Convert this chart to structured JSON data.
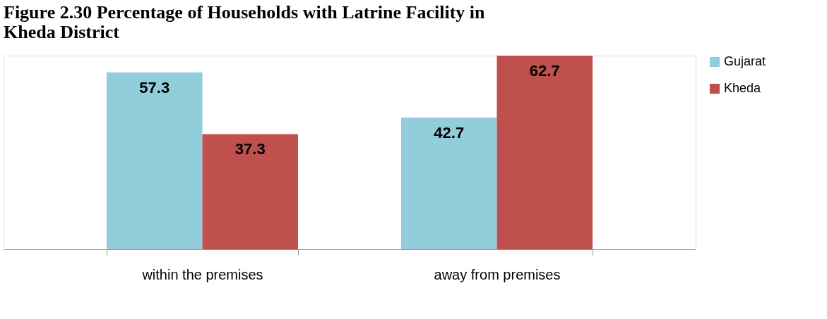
{
  "chart_data": {
    "type": "bar",
    "title": "Figure 2.30 Percentage of Households with Latrine Facility in Kheda District",
    "categories": [
      "within the premises",
      "away from premises"
    ],
    "series": [
      {
        "name": "Gujarat",
        "color": "#92cddc",
        "values": [
          57.3,
          42.7
        ]
      },
      {
        "name": "Kheda",
        "color": "#c0504d",
        "values": [
          37.3,
          62.7
        ]
      }
    ],
    "data_labels": true,
    "legend": "right",
    "grid": false,
    "tick_labels": "x"
  }
}
